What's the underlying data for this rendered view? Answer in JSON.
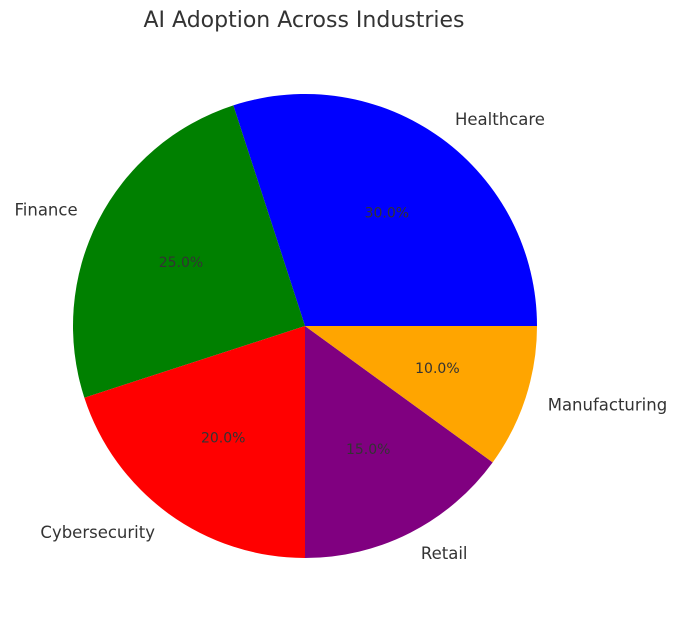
{
  "chart_data": {
    "type": "pie",
    "title": "AI Adoption Across Industries",
    "categories": [
      "Healthcare",
      "Finance",
      "Cybersecurity",
      "Retail",
      "Manufacturing"
    ],
    "values": [
      30,
      25,
      20,
      15,
      10
    ],
    "percent_labels": [
      "30.0%",
      "25.0%",
      "20.0%",
      "15.0%",
      "10.0%"
    ],
    "colors": [
      "#0000ff",
      "#008000",
      "#ff0000",
      "#800080",
      "#ffa500"
    ],
    "start_angle_deg": 0,
    "direction": "counterclockwise",
    "legend": "none"
  }
}
